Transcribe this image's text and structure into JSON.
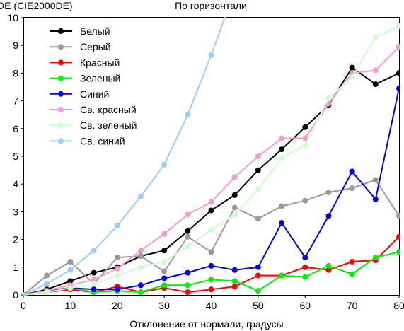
{
  "chart_data": {
    "type": "line",
    "title": "По горизонтали",
    "xlabel": "Отклонение от нормали, градусы",
    "ylabel": "DE (CIE2000DE)",
    "xlim": [
      0,
      80
    ],
    "ylim": [
      0,
      10
    ],
    "x_ticks": [
      0,
      10,
      20,
      30,
      40,
      50,
      60,
      70,
      80
    ],
    "y_ticks": [
      0,
      1,
      2,
      3,
      4,
      5,
      6,
      7,
      8,
      9,
      10
    ],
    "grid": false,
    "legend_position": "top-left",
    "series": [
      {
        "name": "Белый",
        "color": "#000000",
        "x": [
          0,
          5,
          10,
          15,
          20,
          25,
          30,
          35,
          40,
          45,
          50,
          55,
          60,
          65,
          70,
          75,
          80
        ],
        "y": [
          0.0,
          0.2,
          0.5,
          0.8,
          1.0,
          1.4,
          1.6,
          2.3,
          3.05,
          3.6,
          4.5,
          5.25,
          6.05,
          6.85,
          8.2,
          7.6,
          8.0
        ]
      },
      {
        "name": "Серый",
        "color": "#999999",
        "x": [
          0,
          5,
          10,
          15,
          20,
          25,
          30,
          35,
          40,
          45,
          50,
          55,
          60,
          65,
          70,
          75,
          80
        ],
        "y": [
          0.0,
          0.7,
          1.2,
          0.4,
          1.35,
          1.4,
          0.85,
          2.1,
          1.55,
          3.15,
          2.75,
          3.2,
          3.4,
          3.7,
          3.85,
          4.15,
          2.85
        ]
      },
      {
        "name": "Красный",
        "color": "#ff0000",
        "x": [
          0,
          5,
          10,
          15,
          20,
          25,
          30,
          35,
          40,
          45,
          50,
          55,
          60,
          65,
          70,
          75,
          80
        ],
        "y": [
          0.0,
          0.1,
          0.2,
          0.1,
          0.3,
          0.1,
          0.25,
          0.1,
          0.2,
          0.3,
          0.7,
          0.7,
          1.0,
          0.9,
          1.2,
          1.25,
          2.1
        ]
      },
      {
        "name": "Зеленый",
        "color": "#00ee00",
        "x": [
          0,
          5,
          10,
          15,
          20,
          25,
          30,
          35,
          40,
          45,
          50,
          55,
          60,
          65,
          70,
          75,
          80
        ],
        "y": [
          0.0,
          0.1,
          0.25,
          0.1,
          0.15,
          0.1,
          0.35,
          0.35,
          0.55,
          0.5,
          0.15,
          0.7,
          0.65,
          1.05,
          0.75,
          1.35,
          1.55
        ]
      },
      {
        "name": "Синий",
        "color": "#0000ee",
        "x": [
          0,
          5,
          10,
          15,
          20,
          25,
          30,
          35,
          40,
          45,
          50,
          55,
          60,
          65,
          70,
          75,
          80
        ],
        "y": [
          0.0,
          0.15,
          0.25,
          0.2,
          0.2,
          0.35,
          0.6,
          0.8,
          1.05,
          0.9,
          1.0,
          2.6,
          1.35,
          2.85,
          4.45,
          3.45,
          7.45
        ]
      },
      {
        "name": "Св. красный",
        "color": "#ff99cc",
        "x": [
          0,
          5,
          10,
          15,
          20,
          25,
          30,
          35,
          40,
          45,
          50,
          55,
          60,
          65,
          70,
          75,
          80
        ],
        "y": [
          0.0,
          0.15,
          0.35,
          0.55,
          0.95,
          1.6,
          2.2,
          2.9,
          3.35,
          4.25,
          5.0,
          5.65,
          5.65,
          6.9,
          8.0,
          8.1,
          8.95
        ]
      },
      {
        "name": "Св. зеленый",
        "color": "#ccffcc",
        "x": [
          0,
          5,
          10,
          15,
          20,
          25,
          30,
          35,
          40,
          45,
          50,
          55,
          60,
          65,
          70,
          75,
          80
        ],
        "y": [
          0.0,
          0.1,
          0.25,
          0.4,
          0.7,
          1.0,
          1.2,
          1.75,
          2.35,
          2.9,
          3.8,
          4.95,
          5.4,
          7.1,
          7.85,
          9.3,
          9.7
        ]
      },
      {
        "name": "Св. синий",
        "color": "#99ccff",
        "x": [
          0,
          5,
          10,
          15,
          20,
          25,
          30,
          35,
          40,
          45
        ],
        "y": [
          0.0,
          0.4,
          0.9,
          1.6,
          2.5,
          3.55,
          4.7,
          6.5,
          8.65,
          11.0
        ]
      }
    ]
  }
}
